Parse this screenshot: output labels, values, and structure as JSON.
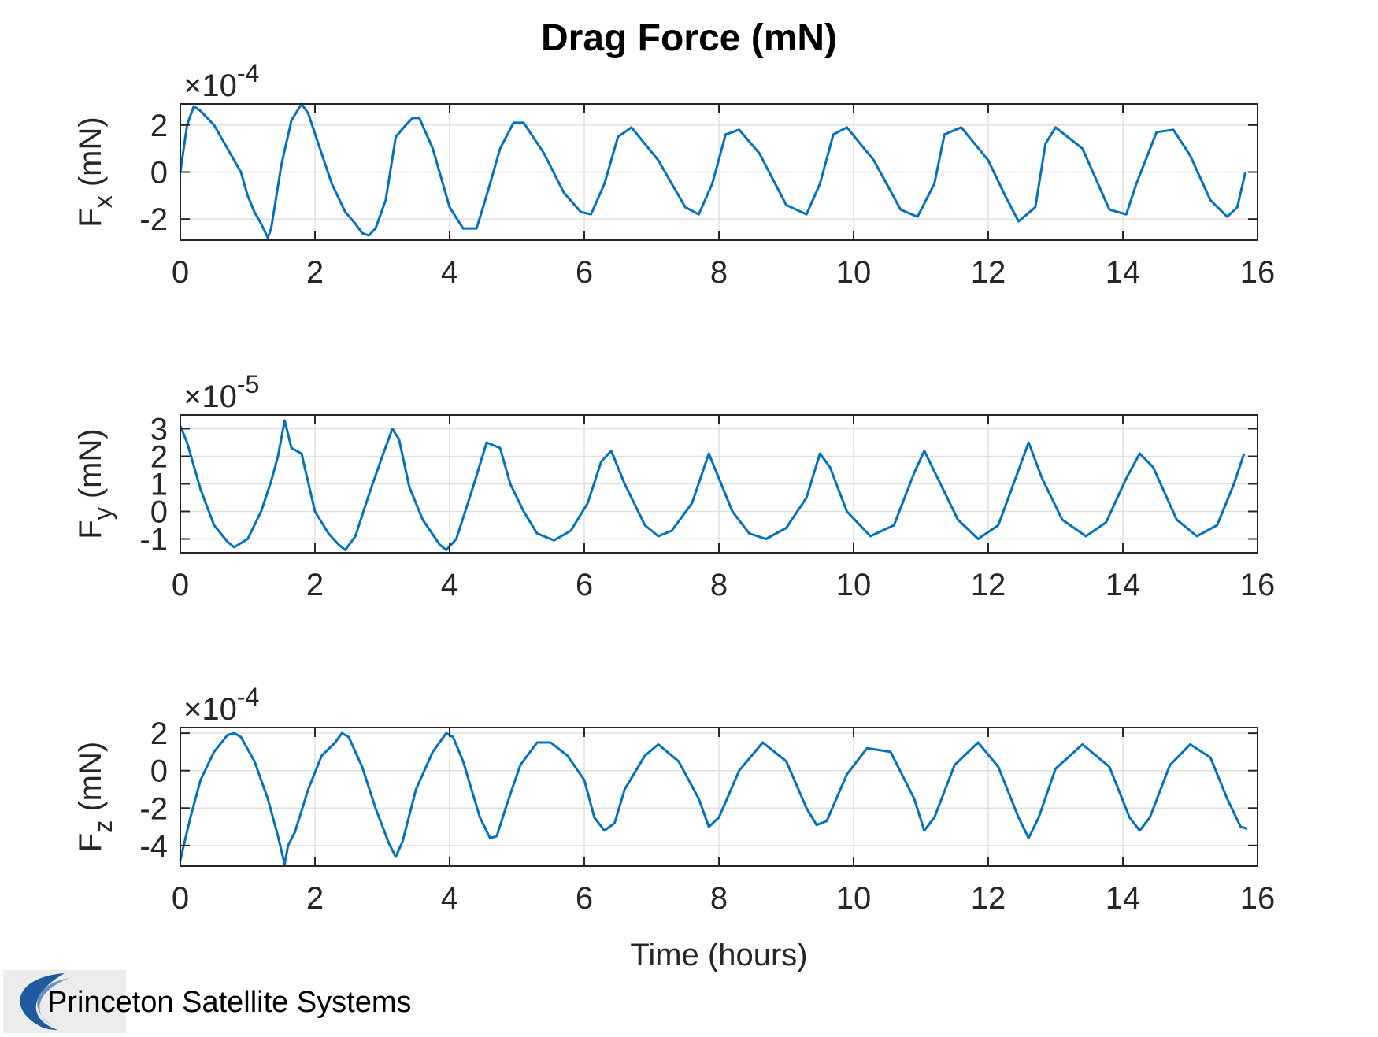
{
  "figure_title": "Drag Force (mN)",
  "logo_text": "Princeton Satellite Systems",
  "colors": {
    "series": "#0072bd",
    "grid": "#dfdfdf",
    "axes": "#262626"
  },
  "chart_data": [
    {
      "type": "line",
      "title": "",
      "xlabel": "",
      "ylabel": "F_x (mN)",
      "ylabel_main": "F",
      "ylabel_sub": "x",
      "ylabel_unit": "(mN)",
      "exponent_label": "×10",
      "exponent_power": "-4",
      "scale": 0.0001,
      "xlim": [
        0,
        16
      ],
      "ylim": [
        -2.9,
        2.9
      ],
      "xticks": [
        0,
        2,
        4,
        6,
        8,
        10,
        12,
        14,
        16
      ],
      "yticks": [
        -2,
        0,
        2
      ],
      "ytick_labels": [
        "-2",
        "0",
        "2"
      ],
      "grid": true,
      "series": [
        {
          "x": [
            0,
            0.1,
            0.2,
            0.3,
            0.5,
            0.7,
            0.9,
            1.0,
            1.1,
            1.2,
            1.3,
            1.35,
            1.4,
            1.5,
            1.65,
            1.8,
            1.9,
            2.05,
            2.25,
            2.45,
            2.6,
            2.7,
            2.8,
            2.9,
            3.05,
            3.2,
            3.35,
            3.45,
            3.55,
            3.75,
            4.0,
            4.2,
            4.4,
            4.55,
            4.75,
            4.95,
            5.1,
            5.4,
            5.7,
            5.95,
            6.1,
            6.3,
            6.5,
            6.7,
            7.1,
            7.5,
            7.7,
            7.9,
            8.1,
            8.3,
            8.6,
            9.0,
            9.3,
            9.5,
            9.7,
            9.9,
            10.3,
            10.7,
            10.95,
            11.2,
            11.35,
            11.6,
            12.0,
            12.25,
            12.45,
            12.7,
            12.85,
            13.0,
            13.4,
            13.8,
            14.05,
            14.2,
            14.5,
            14.75,
            15.0,
            15.3,
            15.55,
            15.7,
            15.82
          ],
          "y": [
            0,
            2.0,
            2.8,
            2.6,
            2.0,
            1.0,
            0,
            -1.0,
            -1.7,
            -2.2,
            -2.8,
            -2.4,
            -1.5,
            0.3,
            2.2,
            2.9,
            2.5,
            1.2,
            -0.5,
            -1.7,
            -2.2,
            -2.6,
            -2.7,
            -2.4,
            -1.2,
            1.5,
            2.0,
            2.3,
            2.3,
            1.0,
            -1.5,
            -2.4,
            -2.4,
            -1.0,
            1.0,
            2.1,
            2.1,
            0.8,
            -0.9,
            -1.7,
            -1.8,
            -0.5,
            1.5,
            1.9,
            0.5,
            -1.5,
            -1.8,
            -0.5,
            1.6,
            1.8,
            0.8,
            -1.4,
            -1.8,
            -0.5,
            1.6,
            1.9,
            0.5,
            -1.6,
            -1.9,
            -0.5,
            1.6,
            1.9,
            0.5,
            -1.0,
            -2.1,
            -1.5,
            1.2,
            1.9,
            1.0,
            -1.6,
            -1.8,
            -0.5,
            1.7,
            1.8,
            0.7,
            -1.2,
            -1.9,
            -1.5,
            0
          ]
        }
      ]
    },
    {
      "type": "line",
      "title": "",
      "xlabel": "",
      "ylabel": "F_y (mN)",
      "ylabel_main": "F",
      "ylabel_sub": "y",
      "ylabel_unit": "(mN)",
      "exponent_label": "×10",
      "exponent_power": "-5",
      "scale": 1e-05,
      "xlim": [
        0,
        16
      ],
      "ylim": [
        -1.5,
        3.5
      ],
      "xticks": [
        0,
        2,
        4,
        6,
        8,
        10,
        12,
        14,
        16
      ],
      "yticks": [
        -1,
        0,
        1,
        2,
        3
      ],
      "ytick_labels": [
        "-1",
        "0",
        "1",
        "2",
        "3"
      ],
      "grid": true,
      "series": [
        {
          "x": [
            0,
            0.1,
            0.3,
            0.5,
            0.7,
            0.8,
            1.0,
            1.2,
            1.35,
            1.45,
            1.55,
            1.65,
            1.8,
            2.0,
            2.2,
            2.35,
            2.45,
            2.6,
            2.8,
            3.0,
            3.15,
            3.25,
            3.4,
            3.6,
            3.85,
            3.95,
            4.1,
            4.35,
            4.55,
            4.75,
            4.9,
            5.1,
            5.3,
            5.55,
            5.8,
            6.05,
            6.25,
            6.4,
            6.6,
            6.9,
            7.1,
            7.3,
            7.6,
            7.85,
            8.0,
            8.2,
            8.45,
            8.7,
            9.0,
            9.3,
            9.5,
            9.65,
            9.9,
            10.25,
            10.6,
            10.9,
            11.05,
            11.25,
            11.55,
            11.85,
            12.15,
            12.45,
            12.6,
            12.8,
            13.1,
            13.45,
            13.75,
            14.05,
            14.25,
            14.45,
            14.8,
            15.1,
            15.4,
            15.65,
            15.8
          ],
          "y": [
            3.1,
            2.5,
            0.8,
            -0.5,
            -1.1,
            -1.3,
            -1.0,
            0,
            1.1,
            2.0,
            3.3,
            2.3,
            2.1,
            0,
            -0.8,
            -1.2,
            -1.4,
            -0.9,
            0.6,
            2.0,
            3.0,
            2.6,
            0.9,
            -0.3,
            -1.2,
            -1.4,
            -1.0,
            0.9,
            2.5,
            2.3,
            1.0,
            0,
            -0.8,
            -1.05,
            -0.7,
            0.3,
            1.8,
            2.2,
            1.0,
            -0.5,
            -0.9,
            -0.7,
            0.3,
            2.1,
            1.2,
            0,
            -0.8,
            -1.0,
            -0.6,
            0.5,
            2.1,
            1.6,
            0,
            -0.9,
            -0.5,
            1.4,
            2.2,
            1.2,
            -0.3,
            -1.0,
            -0.5,
            1.5,
            2.5,
            1.2,
            -0.3,
            -0.9,
            -0.4,
            1.2,
            2.1,
            1.6,
            -0.3,
            -0.9,
            -0.5,
            1.0,
            2.1
          ]
        }
      ]
    },
    {
      "type": "line",
      "title": "",
      "xlabel": "Time (hours)",
      "ylabel": "F_z (mN)",
      "ylabel_main": "F",
      "ylabel_sub": "z",
      "ylabel_unit": "(mN)",
      "exponent_label": "×10",
      "exponent_power": "-4",
      "scale": 0.0001,
      "xlim": [
        0,
        16
      ],
      "ylim": [
        -5.1,
        2.3
      ],
      "xticks": [
        0,
        2,
        4,
        6,
        8,
        10,
        12,
        14,
        16
      ],
      "yticks": [
        -4,
        -2,
        0,
        2
      ],
      "ytick_labels": [
        "-4",
        "-2",
        "0",
        "2"
      ],
      "grid": true,
      "series": [
        {
          "x": [
            0,
            0.05,
            0.15,
            0.3,
            0.5,
            0.7,
            0.8,
            0.9,
            1.1,
            1.3,
            1.45,
            1.55,
            1.6,
            1.7,
            1.9,
            2.1,
            2.3,
            2.4,
            2.5,
            2.7,
            2.9,
            3.1,
            3.2,
            3.3,
            3.5,
            3.75,
            3.95,
            4.05,
            4.2,
            4.45,
            4.6,
            4.7,
            4.85,
            5.05,
            5.3,
            5.5,
            5.75,
            6.0,
            6.15,
            6.3,
            6.45,
            6.6,
            6.9,
            7.1,
            7.4,
            7.7,
            7.85,
            8.0,
            8.3,
            8.65,
            9.0,
            9.3,
            9.45,
            9.6,
            9.9,
            10.2,
            10.55,
            10.9,
            11.05,
            11.2,
            11.5,
            11.85,
            12.15,
            12.45,
            12.6,
            12.75,
            13.0,
            13.4,
            13.8,
            14.1,
            14.25,
            14.4,
            14.7,
            15.0,
            15.3,
            15.55,
            15.75,
            15.85
          ],
          "y": [
            -4.8,
            -4.0,
            -2.5,
            -0.5,
            1.0,
            1.9,
            2.0,
            1.8,
            0.5,
            -1.5,
            -3.5,
            -5.0,
            -4.0,
            -3.3,
            -1.0,
            0.8,
            1.5,
            2.0,
            1.8,
            0.2,
            -2.0,
            -3.9,
            -4.6,
            -3.8,
            -1.0,
            1.0,
            2.0,
            1.8,
            0.5,
            -2.5,
            -3.6,
            -3.5,
            -1.8,
            0.3,
            1.5,
            1.5,
            0.8,
            -0.5,
            -2.5,
            -3.2,
            -2.8,
            -1.0,
            0.8,
            1.4,
            0.5,
            -1.5,
            -3.0,
            -2.5,
            0,
            1.5,
            0.5,
            -2.0,
            -2.9,
            -2.7,
            -0.2,
            1.2,
            1.0,
            -1.5,
            -3.2,
            -2.5,
            0.3,
            1.5,
            0.2,
            -2.5,
            -3.6,
            -2.5,
            0.1,
            1.4,
            0.2,
            -2.5,
            -3.2,
            -2.5,
            0.3,
            1.4,
            0.7,
            -1.5,
            -3.0,
            -3.1
          ]
        }
      ]
    }
  ]
}
